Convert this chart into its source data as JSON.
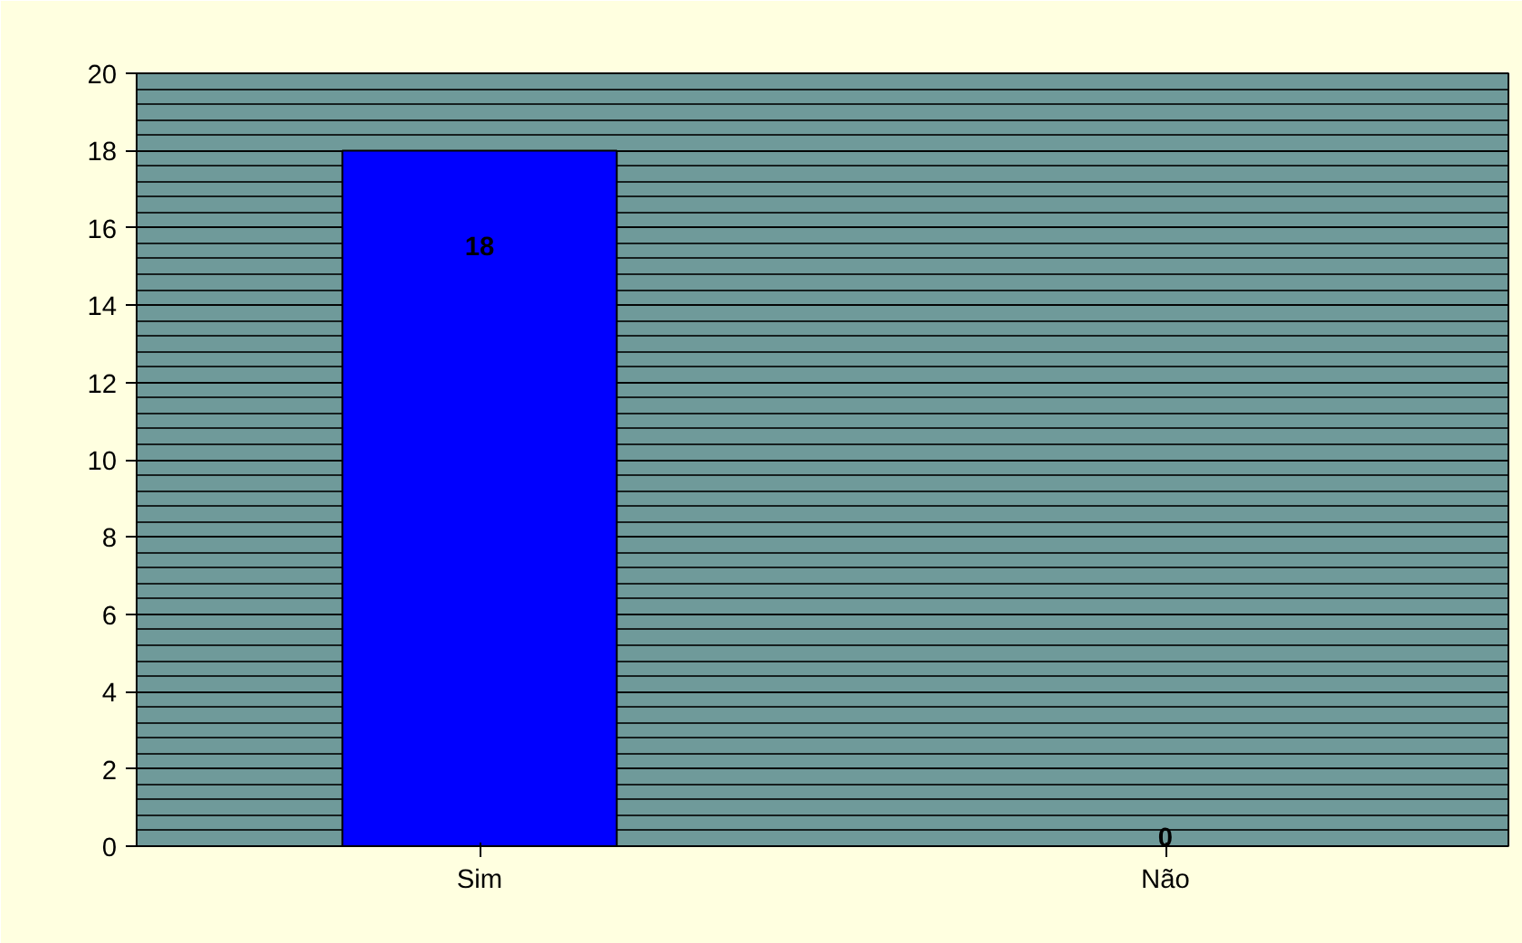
{
  "chart_data": {
    "type": "bar",
    "categories": [
      "Sim",
      "Não"
    ],
    "values": [
      18,
      0
    ],
    "color": "#0000ff",
    "ylim": [
      0,
      20
    ],
    "yticks": [
      0,
      2,
      4,
      6,
      8,
      10,
      12,
      14,
      16,
      18,
      20
    ],
    "grid": "y",
    "data_labels": true
  }
}
